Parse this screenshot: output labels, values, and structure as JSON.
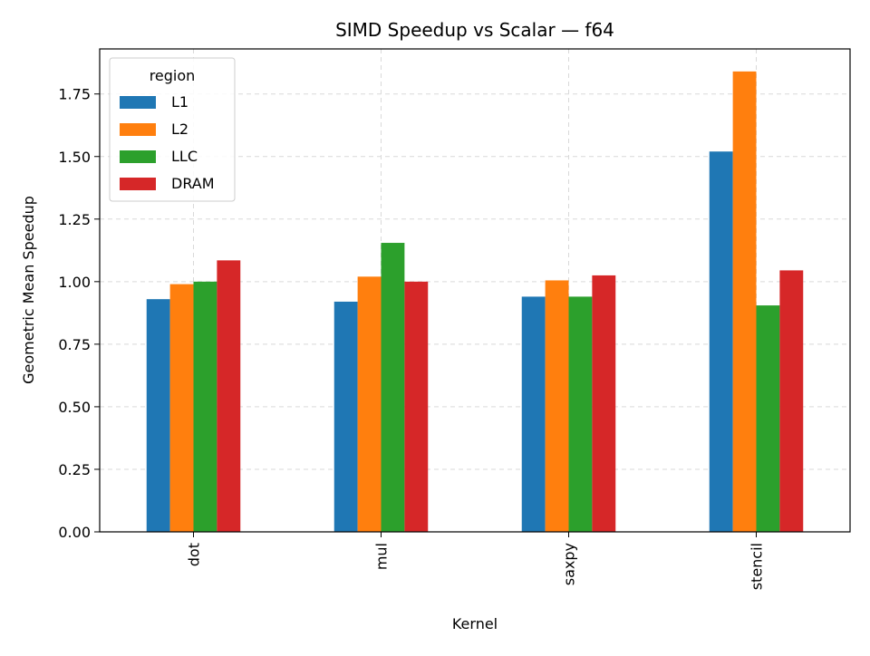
{
  "chart_data": {
    "type": "bar",
    "title": "SIMD Speedup vs Scalar — f64",
    "xlabel": "Kernel",
    "ylabel": "Geometric Mean Speedup",
    "categories": [
      "dot",
      "mul",
      "saxpy",
      "stencil"
    ],
    "ylim": [
      0,
      1.93
    ],
    "yticks": [
      "0.00",
      "0.25",
      "0.50",
      "0.75",
      "1.00",
      "1.25",
      "1.50",
      "1.75"
    ],
    "grid": true,
    "legend": {
      "title": "region",
      "placement": "top-left"
    },
    "series": [
      {
        "name": "L1",
        "color": "#1f77b4",
        "values": [
          0.93,
          0.92,
          0.94,
          1.52
        ]
      },
      {
        "name": "L2",
        "color": "#ff7f0e",
        "values": [
          0.99,
          1.02,
          1.005,
          1.84
        ]
      },
      {
        "name": "LLC",
        "color": "#2ca02c",
        "values": [
          1.0,
          1.155,
          0.94,
          0.905
        ]
      },
      {
        "name": "DRAM",
        "color": "#d62728",
        "values": [
          1.085,
          1.0,
          1.025,
          1.045
        ]
      }
    ]
  }
}
